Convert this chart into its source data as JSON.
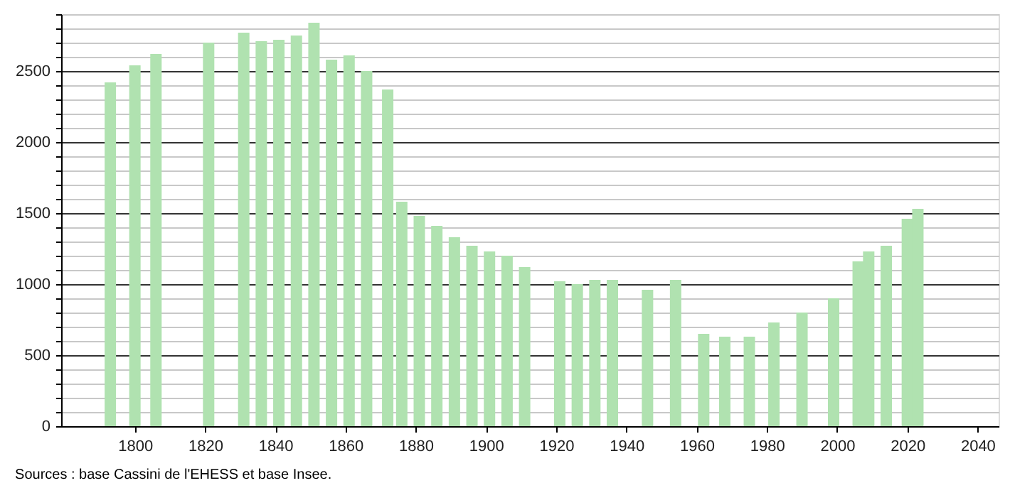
{
  "chart_data": {
    "type": "bar",
    "x": [
      1793,
      1800,
      1806,
      1821,
      1831,
      1836,
      1841,
      1846,
      1851,
      1856,
      1861,
      1866,
      1872,
      1876,
      1881,
      1886,
      1891,
      1896,
      1901,
      1906,
      1911,
      1921,
      1926,
      1931,
      1936,
      1946,
      1954,
      1962,
      1968,
      1975,
      1982,
      1990,
      1999,
      2006,
      2009,
      2014,
      2020,
      2023
    ],
    "values": [
      2420,
      2540,
      2620,
      2700,
      2770,
      2710,
      2720,
      2750,
      2840,
      2580,
      2610,
      2500,
      2370,
      1580,
      1480,
      1410,
      1330,
      1270,
      1230,
      1200,
      1120,
      1020,
      1000,
      1030,
      1030,
      960,
      1030,
      650,
      630,
      630,
      730,
      800,
      900,
      1160,
      1230,
      1270,
      1460,
      1530
    ],
    "color": "#b0e2b0",
    "xlim": [
      1779,
      2046
    ],
    "xticks": [
      1800,
      1820,
      1840,
      1860,
      1880,
      1900,
      1920,
      1940,
      1960,
      1980,
      2000,
      2020,
      2040
    ],
    "ylim": [
      0,
      2900
    ],
    "yticks": [
      0,
      {
        "value": 100,
        "label": null
      },
      {
        "value": 200,
        "label": null
      },
      {
        "value": 300,
        "label": null
      },
      {
        "value": 400,
        "label": null
      },
      500,
      {
        "value": 600,
        "label": null
      },
      {
        "value": 700,
        "label": null
      },
      {
        "value": 800,
        "label": null
      },
      {
        "value": 900,
        "label": null
      },
      1000,
      {
        "value": 1100,
        "label": null
      },
      {
        "value": 1200,
        "label": null
      },
      {
        "value": 1300,
        "label": null
      },
      {
        "value": 1400,
        "label": null
      },
      1500,
      {
        "value": 1600,
        "label": null
      },
      {
        "value": 1700,
        "label": null
      },
      {
        "value": 1800,
        "label": null
      },
      {
        "value": 1900,
        "label": null
      },
      2000,
      {
        "value": 2100,
        "label": null
      },
      {
        "value": 2200,
        "label": null
      },
      {
        "value": 2300,
        "label": null
      },
      {
        "value": 2400,
        "label": null
      },
      2500,
      {
        "value": 2600,
        "label": null
      },
      {
        "value": 2700,
        "label": null
      },
      {
        "value": 2800,
        "label": null
      },
      {
        "value": 2900,
        "label": null
      }
    ],
    "grid": "y",
    "annotations": [
      "Sources : base Cassini de l'EHESS et base Insee."
    ]
  }
}
